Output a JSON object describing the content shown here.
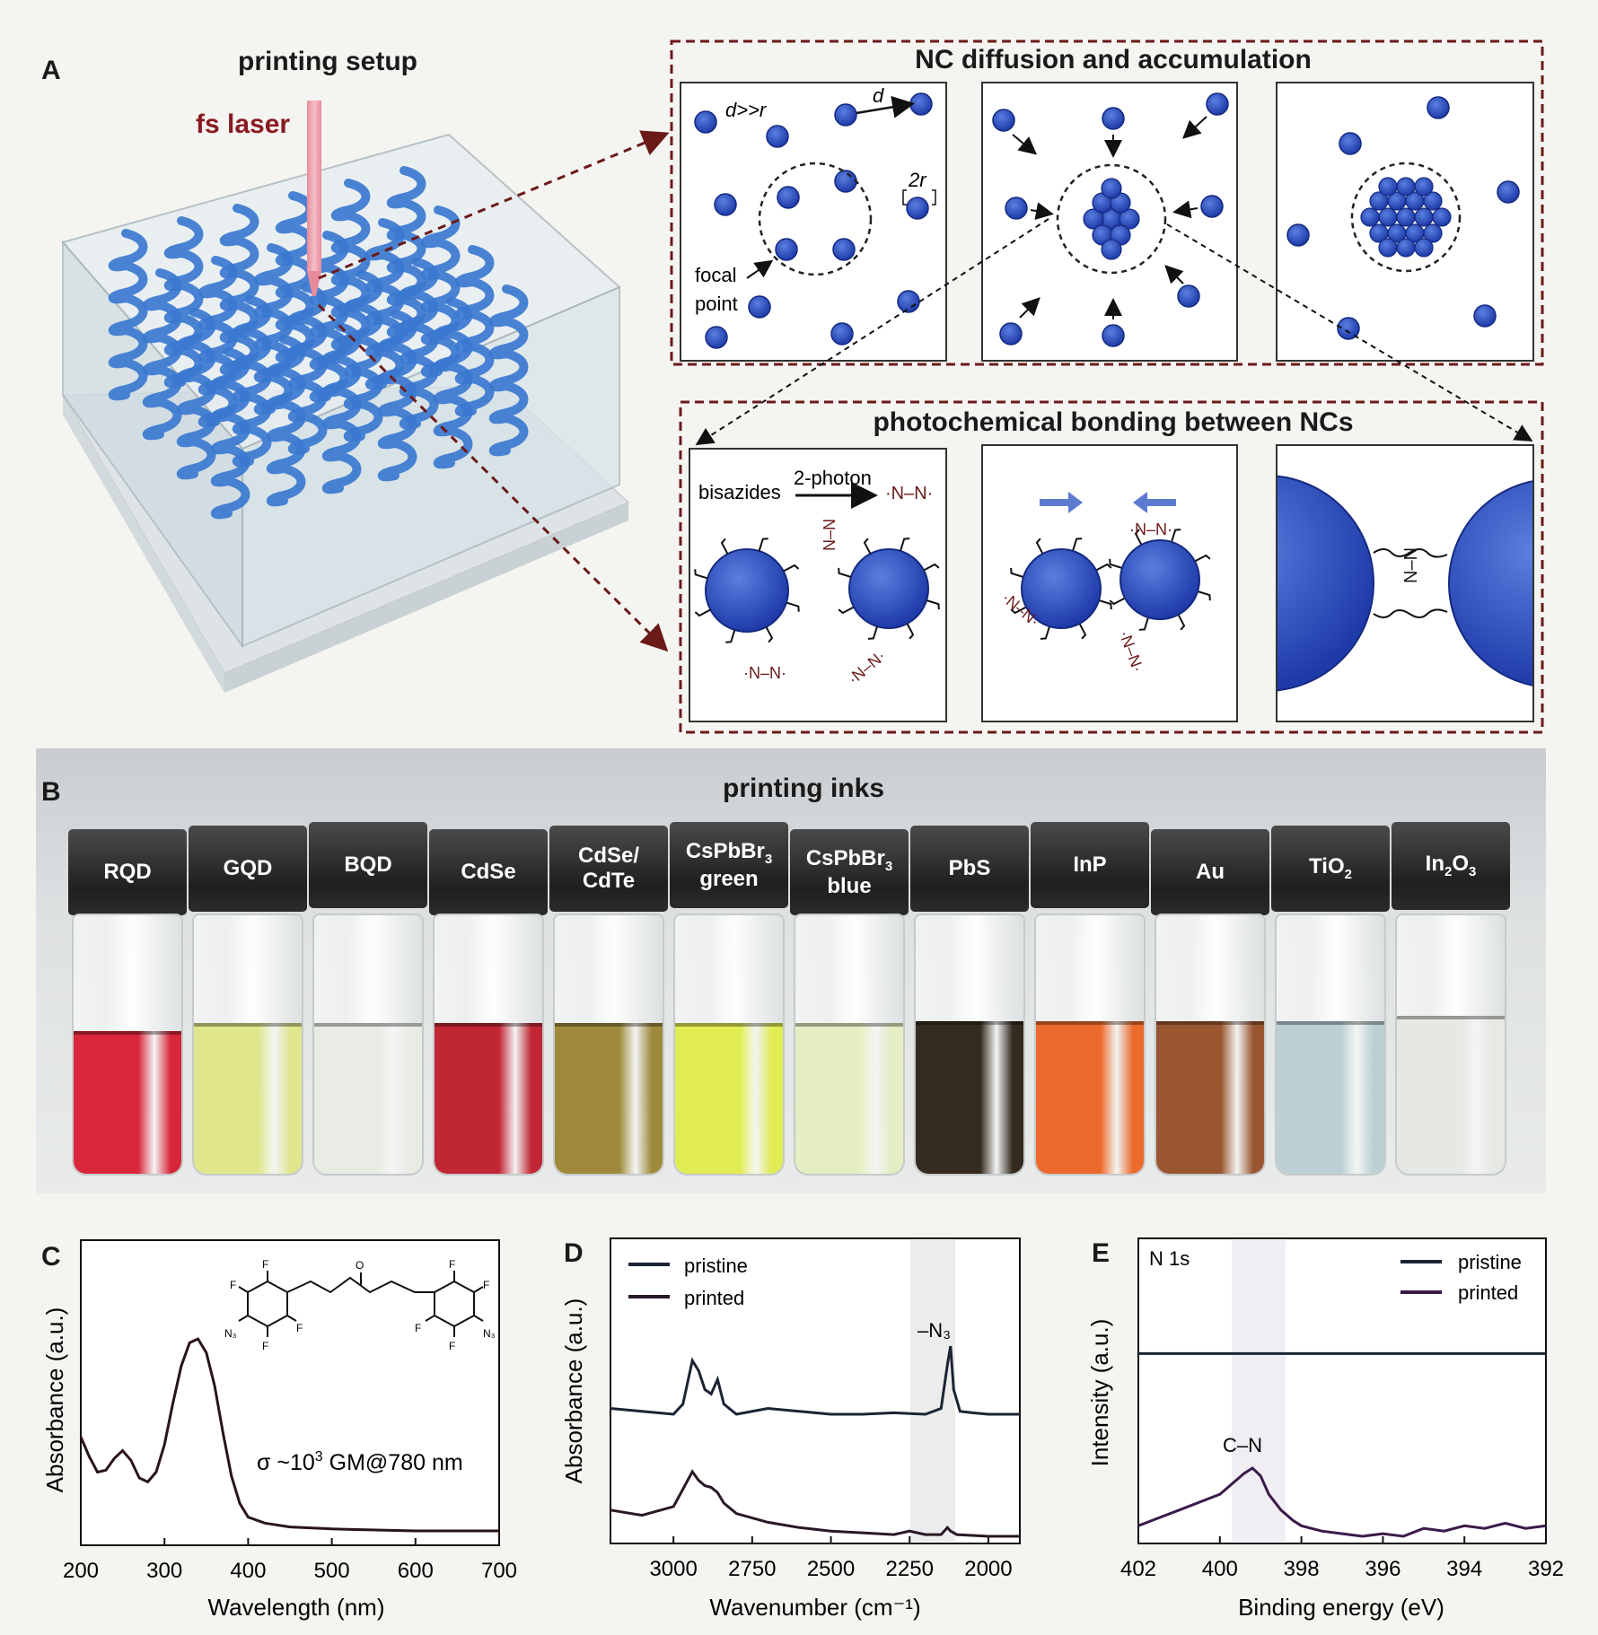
{
  "panels": {
    "A": {
      "label": "A",
      "setup_title": "printing setup",
      "laser_label": "fs laser",
      "diffusion_title": "NC diffusion and accumulation",
      "bonding_title": "photochemical bonding between NCs",
      "d_gt_r": "d>>r",
      "d": "d",
      "two_r": "2r",
      "focal": "focal",
      "point": "point",
      "bisazides": "bisazides",
      "two_photon": "2-photon",
      "nitrene": "·N–N·",
      "nitrene_v": "N–N"
    },
    "B": {
      "label": "B",
      "title": "printing inks",
      "vials": [
        {
          "name": "RQD",
          "sub": "",
          "line2": "",
          "liquid": "#d8263a",
          "level": 0.53
        },
        {
          "name": "GQD",
          "sub": "",
          "line2": "",
          "liquid": "#dfe68c",
          "level": 0.56
        },
        {
          "name": "BQD",
          "sub": "",
          "line2": "",
          "liquid": "#e9ece4",
          "level": 0.56
        },
        {
          "name": "CdSe",
          "sub": "",
          "line2": "",
          "liquid": "#c12634",
          "level": 0.56
        },
        {
          "name": "CdSe/",
          "sub": "",
          "line2": "CdTe",
          "liquid": "#9f8a3b",
          "level": 0.56
        },
        {
          "name": "CsPbBr",
          "sub": "3",
          "line2": "green",
          "liquid": "#e0ec52",
          "level": 0.56
        },
        {
          "name": "CsPbBr",
          "sub": "3",
          "line2": "blue",
          "liquid": "#e4eec2",
          "level": 0.56
        },
        {
          "name": "PbS",
          "sub": "",
          "line2": "",
          "liquid": "#352a1f",
          "level": 0.57
        },
        {
          "name": "InP",
          "sub": "",
          "line2": "",
          "liquid": "#ec6a2c",
          "level": 0.57
        },
        {
          "name": "Au",
          "sub": "",
          "line2": "",
          "liquid": "#9a5630",
          "level": 0.57
        },
        {
          "name": "TiO",
          "sub": "2",
          "line2": "",
          "liquid": "#bcd0d4",
          "level": 0.57
        },
        {
          "name": "In",
          "sub": "2",
          "name2": "O",
          "sub2": "3",
          "line2": "",
          "liquid": "#e6e8e4",
          "level": 0.59
        }
      ]
    },
    "C": {
      "label": "C",
      "annotation_prefix": "σ ~10",
      "annotation_sup": "3",
      "annotation_suffix": " GM@780 nm",
      "mol": {
        "F": "F",
        "O": "O",
        "N3": "N₃"
      }
    },
    "D": {
      "label": "D",
      "peak_label": "–N₃"
    },
    "E": {
      "label": "E",
      "region_label": "N 1s",
      "peak_label": "C–N"
    }
  },
  "chart_data": [
    {
      "type": "line",
      "panel": "C",
      "title": "",
      "xlabel": "Wavelength (nm)",
      "ylabel": "Absorbance (a.u.)",
      "xlim": [
        200,
        700
      ],
      "xticks": [
        200,
        300,
        400,
        500,
        600,
        700
      ],
      "series": [
        {
          "x": [
            200,
            210,
            220,
            230,
            240,
            250,
            260,
            270,
            280,
            290,
            300,
            310,
            320,
            330,
            340,
            350,
            360,
            370,
            380,
            390,
            400,
            420,
            450,
            500,
            600,
            700
          ],
          "y": [
            0.5,
            0.4,
            0.32,
            0.33,
            0.39,
            0.43,
            0.38,
            0.29,
            0.27,
            0.32,
            0.46,
            0.67,
            0.86,
            0.98,
            1.0,
            0.93,
            0.76,
            0.52,
            0.3,
            0.16,
            0.09,
            0.06,
            0.04,
            0.03,
            0.02,
            0.02
          ]
        }
      ]
    },
    {
      "type": "line",
      "panel": "D",
      "title": "",
      "xlabel": "Wavenumber (cm⁻¹)",
      "ylabel": "Absorbance (a.u.)",
      "xlim": [
        3200,
        1900
      ],
      "xticks": [
        3000,
        2750,
        2500,
        2250,
        2000
      ],
      "series": [
        {
          "name": "pristine",
          "x": [
            3200,
            3100,
            3000,
            2970,
            2940,
            2920,
            2900,
            2880,
            2860,
            2840,
            2800,
            2700,
            2600,
            2500,
            2400,
            2300,
            2200,
            2150,
            2130,
            2120,
            2110,
            2090,
            2050,
            2000,
            1950,
            1900
          ],
          "y": [
            0.92,
            0.9,
            0.88,
            0.95,
            1.25,
            1.18,
            1.05,
            1.02,
            1.12,
            0.95,
            0.88,
            0.92,
            0.9,
            0.88,
            0.88,
            0.89,
            0.88,
            0.92,
            1.22,
            1.35,
            1.05,
            0.9,
            0.89,
            0.88,
            0.88,
            0.88
          ]
        },
        {
          "name": "printed",
          "x": [
            3200,
            3100,
            3000,
            2970,
            2940,
            2920,
            2900,
            2880,
            2860,
            2840,
            2800,
            2700,
            2600,
            2500,
            2400,
            2300,
            2250,
            2200,
            2150,
            2130,
            2120,
            2100,
            2000,
            1900
          ],
          "y": [
            0.16,
            0.13,
            0.18,
            0.28,
            0.38,
            0.33,
            0.3,
            0.29,
            0.26,
            0.2,
            0.14,
            0.09,
            0.06,
            0.04,
            0.03,
            0.02,
            0.04,
            0.02,
            0.02,
            0.06,
            0.04,
            0.02,
            0.01,
            0.01
          ]
        }
      ]
    },
    {
      "type": "line",
      "panel": "E",
      "title": "",
      "xlabel": "Binding energy (eV)",
      "ylabel": "Intensity (a.u.)",
      "xlim": [
        402,
        392
      ],
      "xticks": [
        402,
        400,
        398,
        396,
        394,
        392
      ],
      "series": [
        {
          "name": "pristine",
          "x": [
            402,
            392
          ],
          "y": [
            0.62,
            0.62
          ]
        },
        {
          "name": "printed",
          "x": [
            402,
            401.5,
            401,
            400.5,
            400,
            399.7,
            399.4,
            399.2,
            399,
            398.8,
            398.5,
            398.2,
            398,
            397.5,
            397,
            396.5,
            396,
            395.5,
            395,
            394.5,
            394,
            393.5,
            393,
            392.5,
            392
          ],
          "y": [
            0.1,
            0.13,
            0.16,
            0.19,
            0.22,
            0.26,
            0.3,
            0.32,
            0.29,
            0.22,
            0.16,
            0.12,
            0.1,
            0.08,
            0.07,
            0.06,
            0.07,
            0.06,
            0.09,
            0.08,
            0.1,
            0.09,
            0.11,
            0.09,
            0.1
          ]
        }
      ]
    }
  ]
}
